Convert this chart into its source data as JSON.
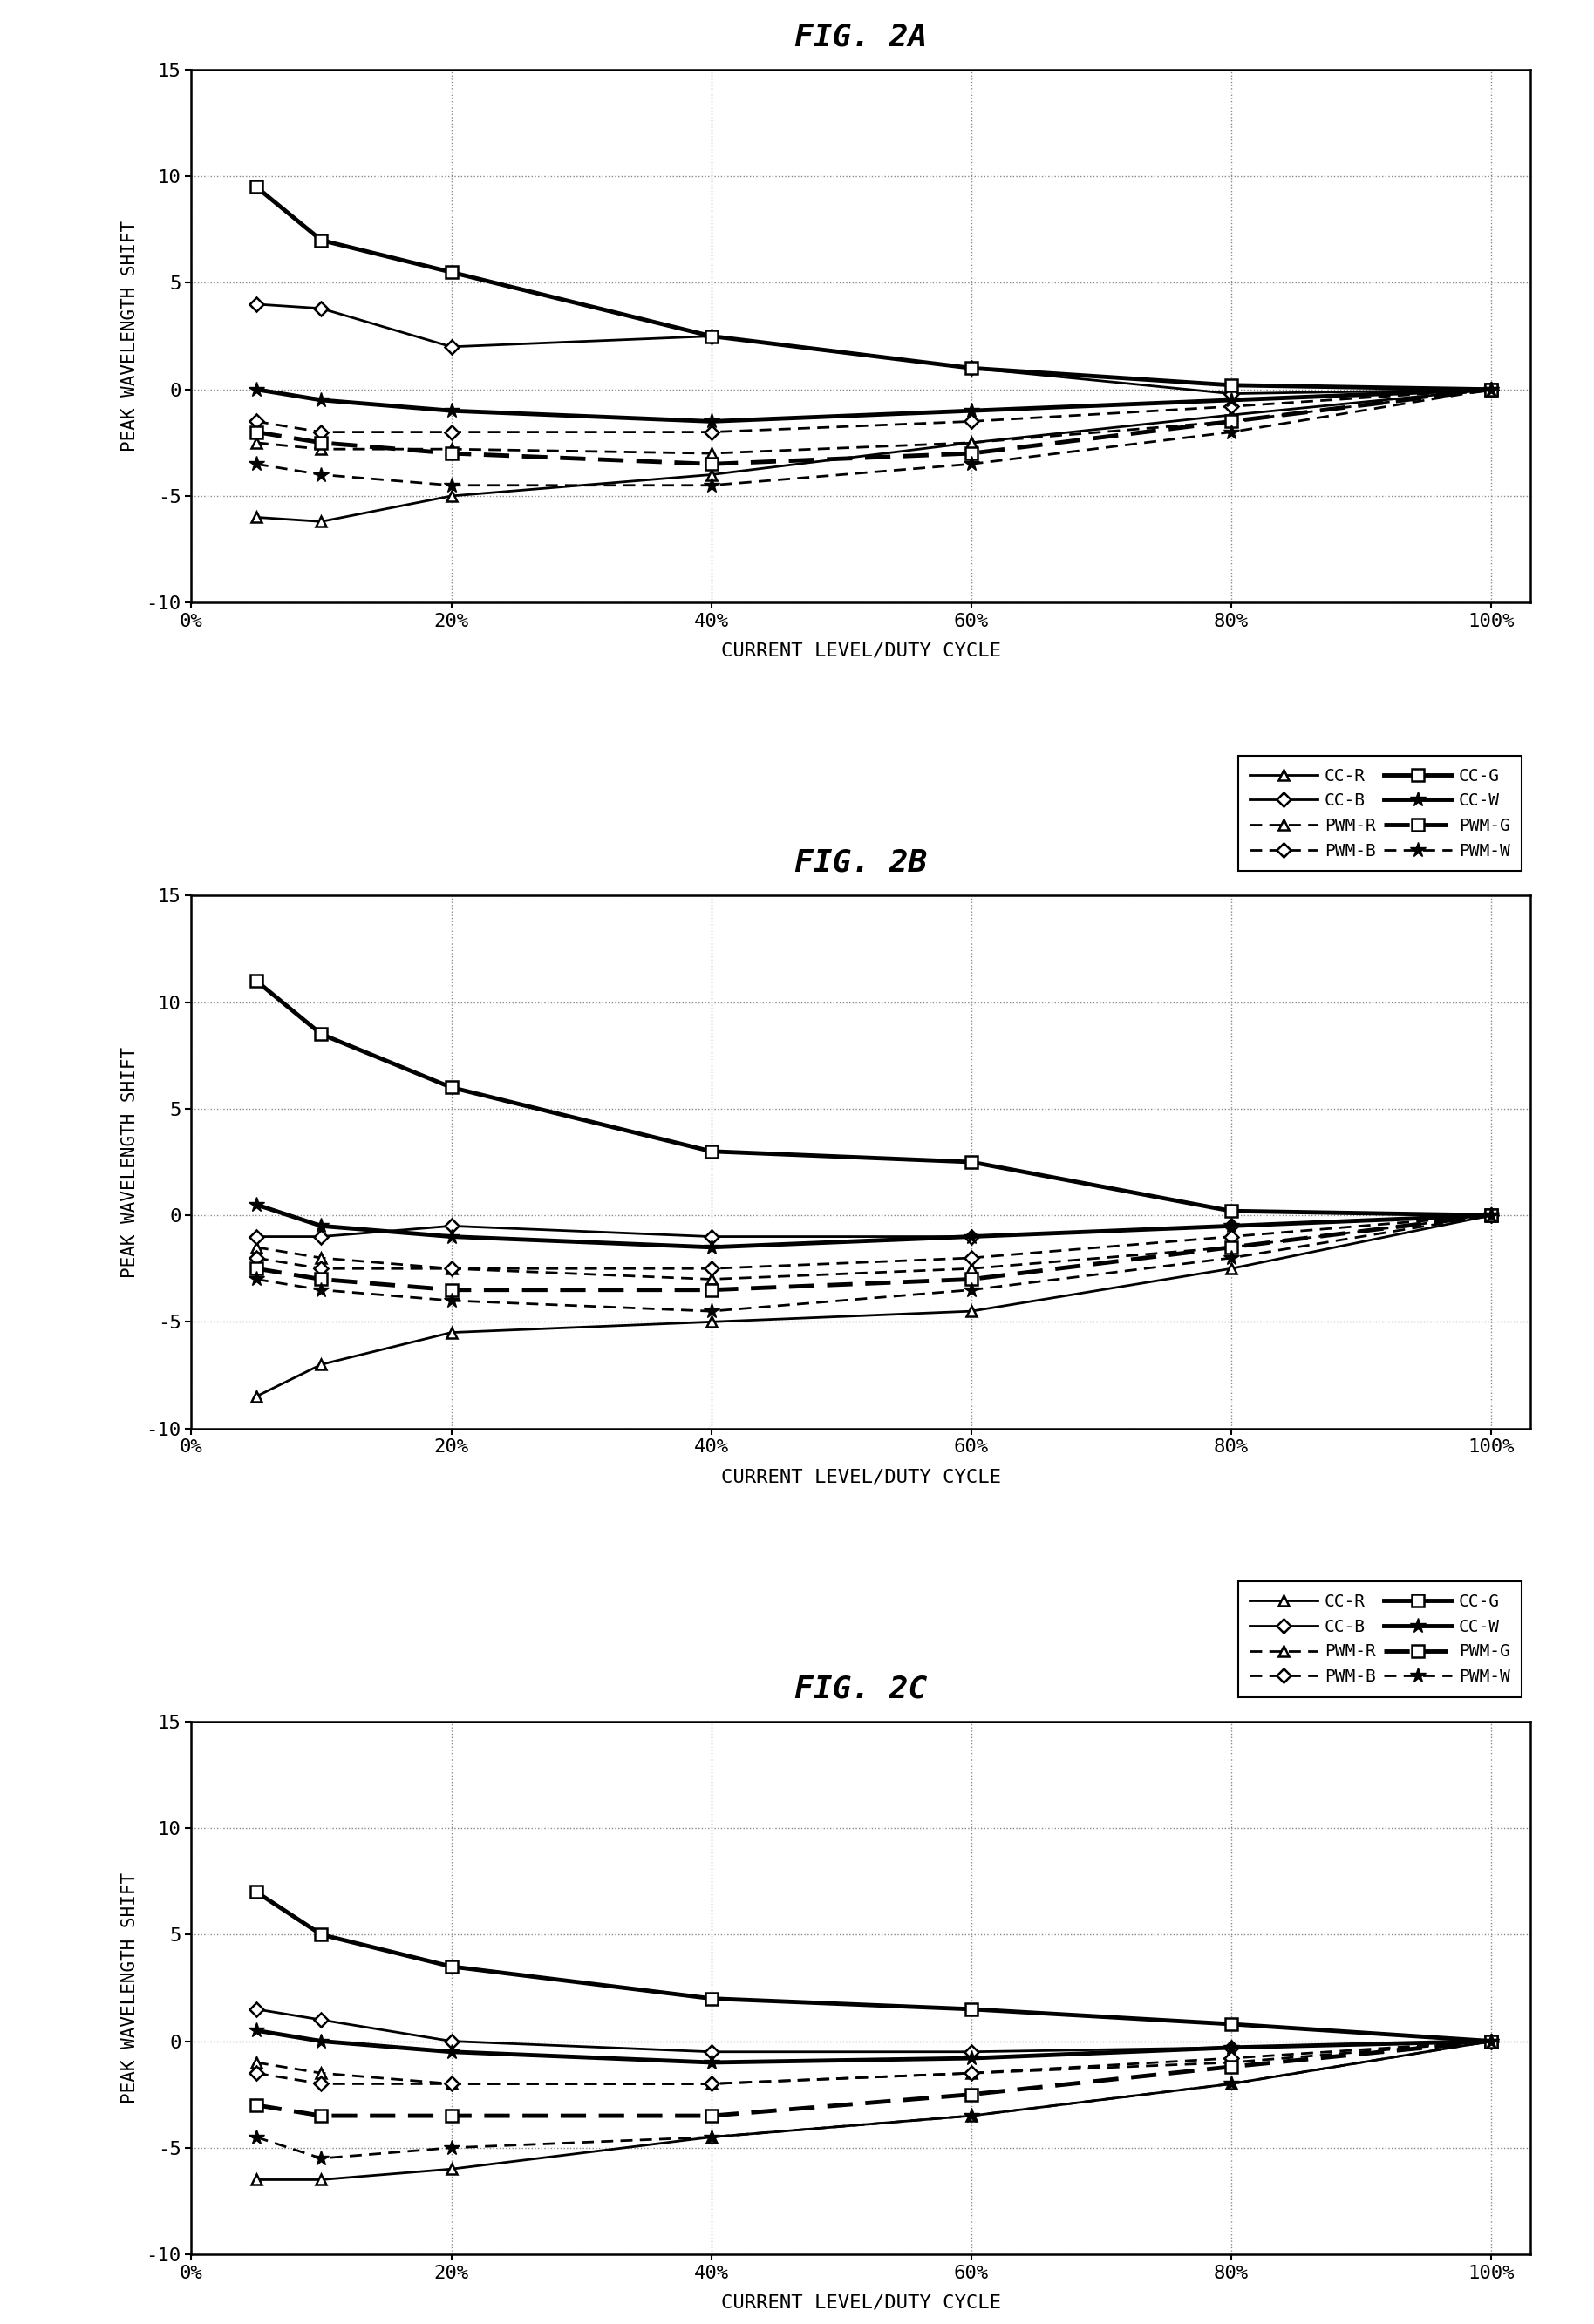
{
  "x_values": [
    5,
    10,
    20,
    40,
    60,
    80,
    100
  ],
  "x_ticks": [
    0,
    20,
    40,
    60,
    80,
    100
  ],
  "x_ticklabels": [
    "0%",
    "20%",
    "40%",
    "60%",
    "80%",
    "100%"
  ],
  "ylim": [
    -10,
    15
  ],
  "yticks": [
    -10,
    -5,
    0,
    5,
    10,
    15
  ],
  "ylabel": "PEAK WAVELENGTH SHIFT",
  "xlabel": "CURRENT LEVEL/DUTY CYCLE",
  "background_color": "#ffffff",
  "fig2A": {
    "title": "FIG. 2A",
    "CC_R": [
      -6.0,
      -6.2,
      -5.0,
      -4.0,
      -2.5,
      -1.2,
      0.0
    ],
    "PWM_R": [
      -2.5,
      -2.8,
      -2.8,
      -3.0,
      -2.5,
      -1.5,
      0.0
    ],
    "CC_B": [
      4.0,
      3.8,
      2.0,
      2.5,
      1.0,
      -0.2,
      0.0
    ],
    "PWM_B": [
      -1.5,
      -2.0,
      -2.0,
      -2.0,
      -1.5,
      -0.8,
      0.0
    ],
    "CC_G": [
      9.5,
      7.0,
      5.5,
      2.5,
      1.0,
      0.2,
      0.0
    ],
    "PWM_G": [
      -2.0,
      -2.5,
      -3.0,
      -3.5,
      -3.0,
      -1.5,
      0.0
    ],
    "CC_W": [
      0.0,
      -0.5,
      -1.0,
      -1.5,
      -1.0,
      -0.5,
      0.0
    ],
    "PWM_W": [
      -3.5,
      -4.0,
      -4.5,
      -4.5,
      -3.5,
      -2.0,
      0.0
    ]
  },
  "fig2B": {
    "title": "FIG. 2B",
    "CC_R": [
      -8.5,
      -7.0,
      -5.5,
      -5.0,
      -4.5,
      -2.5,
      0.0
    ],
    "PWM_R": [
      -1.5,
      -2.0,
      -2.5,
      -3.0,
      -2.5,
      -1.5,
      0.0
    ],
    "CC_B": [
      -1.0,
      -1.0,
      -0.5,
      -1.0,
      -1.0,
      -0.5,
      0.0
    ],
    "PWM_B": [
      -2.0,
      -2.5,
      -2.5,
      -2.5,
      -2.0,
      -1.0,
      0.0
    ],
    "CC_G": [
      11.0,
      8.5,
      6.0,
      3.0,
      2.5,
      0.2,
      0.0
    ],
    "PWM_G": [
      -2.5,
      -3.0,
      -3.5,
      -3.5,
      -3.0,
      -1.5,
      0.0
    ],
    "CC_W": [
      0.5,
      -0.5,
      -1.0,
      -1.5,
      -1.0,
      -0.5,
      0.0
    ],
    "PWM_W": [
      -3.0,
      -3.5,
      -4.0,
      -4.5,
      -3.5,
      -2.0,
      0.0
    ]
  },
  "fig2C": {
    "title": "FIG. 2C",
    "CC_R": [
      -6.5,
      -6.5,
      -6.0,
      -4.5,
      -3.5,
      -2.0,
      0.0
    ],
    "PWM_R": [
      -1.0,
      -1.5,
      -2.0,
      -2.0,
      -1.5,
      -1.0,
      0.0
    ],
    "CC_B": [
      1.5,
      1.0,
      0.0,
      -0.5,
      -0.5,
      -0.3,
      0.0
    ],
    "PWM_B": [
      -1.5,
      -2.0,
      -2.0,
      -2.0,
      -1.5,
      -0.8,
      0.0
    ],
    "CC_G": [
      7.0,
      5.0,
      3.5,
      2.0,
      1.5,
      0.8,
      0.0
    ],
    "PWM_G": [
      -3.0,
      -3.5,
      -3.5,
      -3.5,
      -2.5,
      -1.2,
      0.0
    ],
    "CC_W": [
      0.5,
      0.0,
      -0.5,
      -1.0,
      -0.8,
      -0.3,
      0.0
    ],
    "PWM_W": [
      -4.5,
      -5.5,
      -5.0,
      -4.5,
      -3.5,
      -2.0,
      0.0
    ]
  }
}
